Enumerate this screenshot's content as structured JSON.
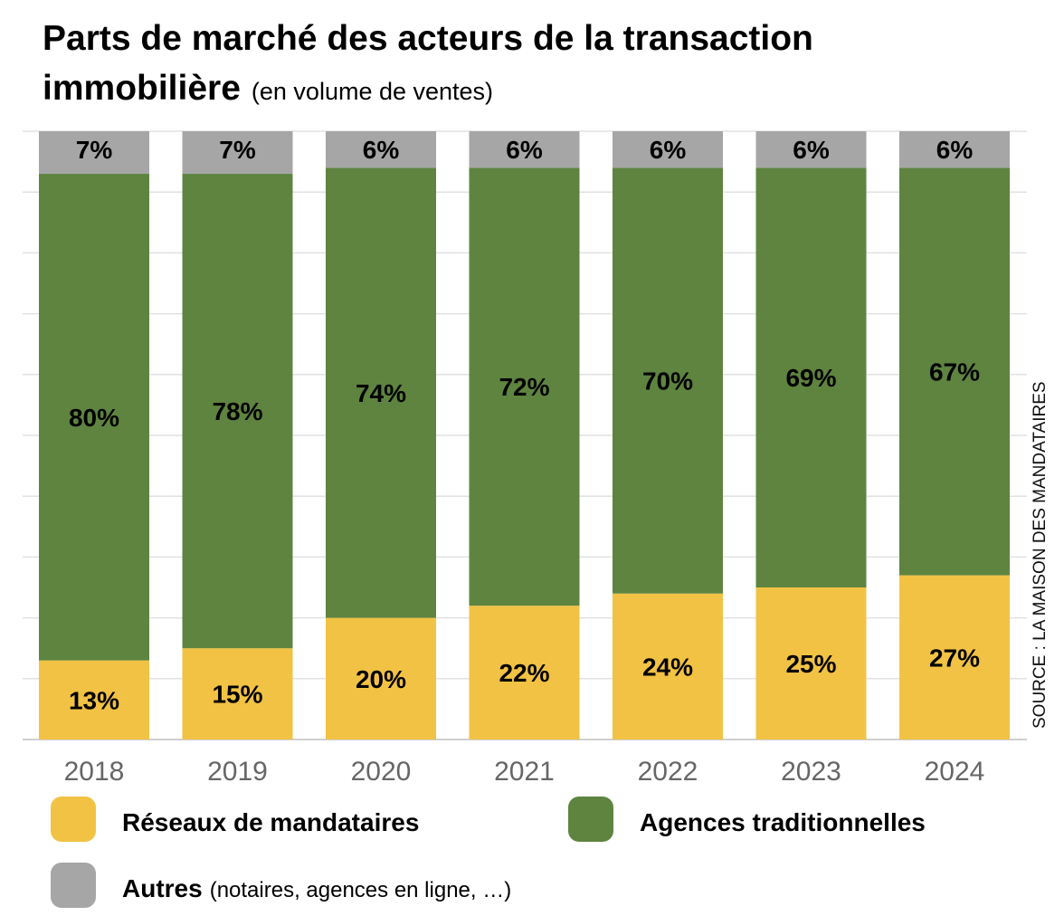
{
  "chart_data": {
    "type": "bar",
    "stacked": true,
    "normalized": true,
    "title": "Parts de marché des acteurs de la transaction immobilière",
    "title_line1": "Parts de marché des acteurs de la transaction",
    "title_line2": "immobilière",
    "subtitle": "(en volume de ventes)",
    "source": "SOURCE : LA MAISON DES MANDATAIRES",
    "categories": [
      "2018",
      "2019",
      "2020",
      "2021",
      "2022",
      "2023",
      "2024"
    ],
    "ylim": [
      0,
      100
    ],
    "grid": true,
    "legend_position": "bottom",
    "series": [
      {
        "name": "Réseaux de mandataires",
        "color": "#F2C244",
        "values": [
          13,
          15,
          20,
          22,
          24,
          25,
          27
        ]
      },
      {
        "name": "Agences traditionnelles",
        "color": "#5E8440",
        "values": [
          80,
          78,
          74,
          72,
          70,
          69,
          67
        ]
      },
      {
        "name": "Autres",
        "note": "(notaires, agences en ligne, …)",
        "color": "#A6A6A6",
        "values": [
          7,
          7,
          6,
          6,
          6,
          6,
          6
        ]
      }
    ],
    "value_suffix": "%"
  }
}
